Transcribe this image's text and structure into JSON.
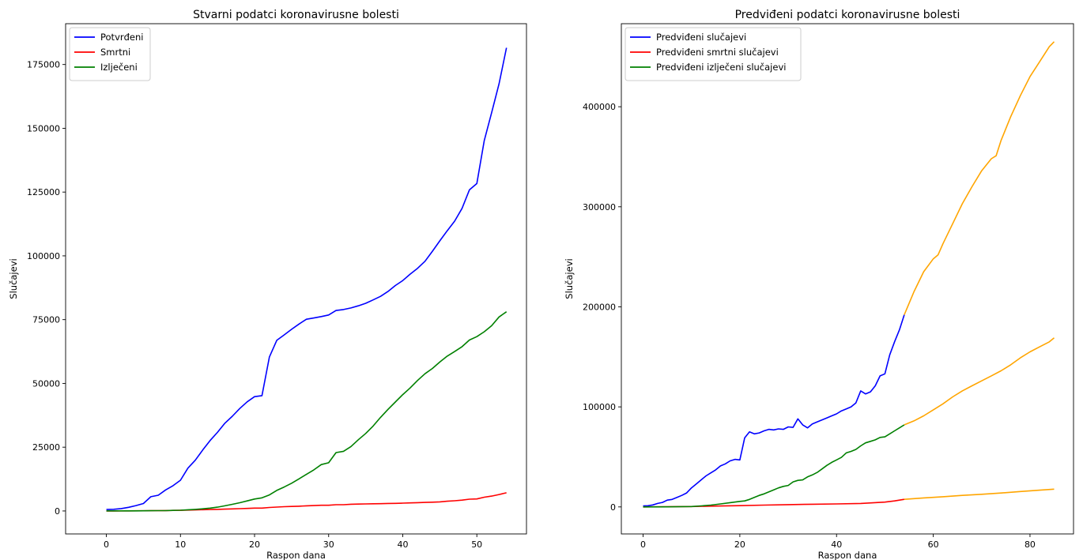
{
  "chart_data": [
    {
      "type": "line",
      "title": "Stvarni podatci koronavirusne bolesti",
      "xlabel": "Raspon dana",
      "ylabel": "Slučajevi",
      "xlim": [
        -5.5,
        56.7
      ],
      "ylim": [
        -9000,
        191000
      ],
      "xticks": [
        0,
        10,
        20,
        30,
        40,
        50
      ],
      "yticks": [
        0,
        25000,
        50000,
        75000,
        100000,
        125000,
        150000,
        175000
      ],
      "legend_position": "top-left",
      "grid": false,
      "series": [
        {
          "name": "Potvrđeni",
          "color": "#0000ff",
          "x": [
            0,
            1,
            2,
            3,
            4,
            5,
            6,
            7,
            8,
            9,
            10,
            11,
            12,
            13,
            14,
            15,
            16,
            17,
            18,
            19,
            20,
            21,
            22,
            23,
            24,
            25,
            26,
            27,
            28,
            29,
            30,
            31,
            32,
            33,
            34,
            35,
            36,
            37,
            38,
            39,
            40,
            41,
            42,
            43,
            44,
            45,
            46,
            47,
            48,
            49,
            50,
            51,
            52,
            53,
            54
          ],
          "y": [
            555,
            654,
            941,
            1434,
            2118,
            2927,
            5578,
            6166,
            8234,
            9927,
            12038,
            16787,
            19881,
            23892,
            27635,
            30817,
            34391,
            37120,
            40150,
            42762,
            44802,
            45221,
            60368,
            66885,
            69030,
            71224,
            73258,
            75136,
            75639,
            76197,
            76819,
            78572,
            78958,
            79561,
            80406,
            81388,
            82746,
            84112,
            86011,
            88369,
            90306,
            92840,
            95120,
            97886,
            101801,
            105847,
            109821,
            113590,
            118620,
            125875,
            128352,
            145205,
            156101,
            167454,
            181546
          ]
        },
        {
          "name": "Smrtni",
          "color": "#ff0000",
          "x": [
            0,
            1,
            2,
            3,
            4,
            5,
            6,
            7,
            8,
            9,
            10,
            11,
            12,
            13,
            14,
            15,
            16,
            17,
            18,
            19,
            20,
            21,
            22,
            23,
            24,
            25,
            26,
            27,
            28,
            29,
            30,
            31,
            32,
            33,
            34,
            35,
            36,
            37,
            38,
            39,
            40,
            41,
            42,
            43,
            44,
            45,
            46,
            47,
            48,
            49,
            50,
            51,
            52,
            53,
            54
          ],
          "y": [
            17,
            18,
            26,
            42,
            56,
            82,
            131,
            133,
            171,
            213,
            259,
            362,
            426,
            492,
            564,
            634,
            719,
            806,
            906,
            1013,
            1113,
            1118,
            1371,
            1523,
            1666,
            1770,
            1868,
            2007,
            2122,
            2247,
            2251,
            2458,
            2469,
            2629,
            2708,
            2770,
            2814,
            2872,
            2941,
            2996,
            3085,
            3160,
            3254,
            3348,
            3460,
            3558,
            3803,
            3996,
            4262,
            4615,
            4720,
            5404,
            5819,
            6440,
            7126
          ]
        },
        {
          "name": "Izlječeni",
          "color": "#008000",
          "x": [
            0,
            1,
            2,
            3,
            4,
            5,
            6,
            7,
            8,
            9,
            10,
            11,
            12,
            13,
            14,
            15,
            16,
            17,
            18,
            19,
            20,
            21,
            22,
            23,
            24,
            25,
            26,
            27,
            28,
            29,
            30,
            31,
            32,
            33,
            34,
            35,
            36,
            37,
            38,
            39,
            40,
            41,
            42,
            43,
            44,
            45,
            46,
            47,
            48,
            49,
            50,
            51,
            52,
            53,
            54
          ],
          "y": [
            28,
            30,
            36,
            39,
            52,
            61,
            107,
            126,
            143,
            222,
            284,
            472,
            623,
            852,
            1124,
            1487,
            2011,
            2616,
            3244,
            3946,
            4683,
            5150,
            6295,
            8058,
            9395,
            10865,
            12583,
            14352,
            16121,
            18177,
            18890,
            22886,
            23394,
            25227,
            27905,
            30384,
            33277,
            36711,
            39782,
            42716,
            45602,
            48228,
            51170,
            53796,
            55865,
            58359,
            60694,
            62494,
            64404,
            67003,
            68324,
            70251,
            72624,
            76034,
            78088
          ]
        }
      ]
    },
    {
      "type": "line",
      "title": "Predviđeni podatci koronavirusne bolesti",
      "xlabel": "Raspon dana",
      "ylabel": "Slučajevi",
      "xlim": [
        -4.5,
        89
      ],
      "ylim": [
        -27000,
        483000
      ],
      "xticks": [
        0,
        20,
        40,
        60,
        80
      ],
      "yticks": [
        0,
        100000,
        200000,
        300000,
        400000
      ],
      "legend_position": "top-left",
      "grid": false,
      "series": [
        {
          "name": "Predviđeni slučajevi",
          "color": "#0000ff",
          "x": [
            0,
            1,
            2,
            3,
            4,
            5,
            6,
            7,
            8,
            9,
            10,
            11,
            12,
            13,
            14,
            15,
            16,
            17,
            18,
            19,
            20,
            21,
            22,
            23,
            24,
            25,
            26,
            27,
            28,
            29,
            30,
            31,
            32,
            33,
            34,
            35,
            36,
            37,
            38,
            39,
            40,
            41,
            42,
            43,
            44,
            45,
            46,
            47,
            48,
            49,
            50,
            51,
            52,
            53,
            54
          ],
          "y": [
            1000,
            1200,
            2000,
            3500,
            4500,
            6800,
            7500,
            9500,
            11500,
            14000,
            19000,
            23000,
            27000,
            31000,
            34000,
            37000,
            41000,
            43000,
            46000,
            47500,
            47000,
            69000,
            75000,
            73000,
            74000,
            76000,
            77500,
            77000,
            78000,
            77500,
            80000,
            79500,
            88000,
            82000,
            79000,
            83000,
            85000,
            87000,
            89000,
            91000,
            93000,
            96000,
            98000,
            100000,
            104000,
            116000,
            113000,
            115000,
            121000,
            131000,
            133000,
            152000,
            165000,
            177000,
            192000
          ]
        },
        {
          "name": "Predviđeni smrtni slučajevi",
          "color": "#ff0000",
          "x": [
            0,
            5,
            10,
            15,
            20,
            25,
            30,
            35,
            40,
            45,
            50,
            52,
            54
          ],
          "y": [
            0,
            200,
            400,
            900,
            1300,
            1800,
            2300,
            2700,
            3000,
            3500,
            4800,
            6000,
            7600
          ]
        },
        {
          "name": "Predviđeni izlječeni slučajevi",
          "color": "#008000",
          "x": [
            0,
            5,
            10,
            12,
            14,
            16,
            18,
            20,
            21,
            22,
            23,
            24,
            25,
            26,
            27,
            28,
            29,
            30,
            31,
            32,
            33,
            34,
            35,
            36,
            37,
            38,
            39,
            40,
            41,
            42,
            43,
            44,
            45,
            46,
            47,
            48,
            49,
            50,
            51,
            52,
            53,
            54
          ],
          "y": [
            0,
            100,
            400,
            1000,
            1800,
            3000,
            4300,
            5500,
            6000,
            7500,
            9500,
            11500,
            13000,
            15000,
            17000,
            19000,
            20500,
            21500,
            25000,
            26500,
            27000,
            30000,
            32000,
            34500,
            38000,
            41500,
            44500,
            47000,
            49500,
            54000,
            55500,
            57500,
            61000,
            64000,
            65500,
            67000,
            69500,
            70000,
            73000,
            76000,
            79000,
            82000
          ]
        },
        {
          "name": "",
          "color": "#ffa500",
          "x": [
            54,
            56,
            58,
            60,
            61,
            62,
            64,
            66,
            68,
            70,
            72,
            73,
            74,
            76,
            78,
            80,
            82,
            84,
            85
          ],
          "y": [
            192000,
            215000,
            235000,
            248000,
            252000,
            263000,
            283000,
            303000,
            320000,
            336000,
            348000,
            351000,
            366000,
            390000,
            411000,
            430000,
            445000,
            460000,
            465000
          ]
        },
        {
          "name": "",
          "color": "#ffa500",
          "x": [
            54,
            56,
            58,
            60,
            62,
            64,
            66,
            68,
            70,
            72,
            74,
            76,
            78,
            80,
            82,
            84,
            85
          ],
          "y": [
            82000,
            86000,
            91000,
            97000,
            103000,
            110000,
            116000,
            121000,
            126000,
            131000,
            136000,
            142000,
            149000,
            155000,
            160000,
            165000,
            169000
          ]
        },
        {
          "name": "",
          "color": "#ffa500",
          "x": [
            54,
            58,
            62,
            66,
            70,
            74,
            78,
            82,
            85
          ],
          "y": [
            7600,
            9000,
            10200,
            11500,
            12600,
            13900,
            15400,
            16700,
            17800
          ]
        }
      ]
    }
  ]
}
